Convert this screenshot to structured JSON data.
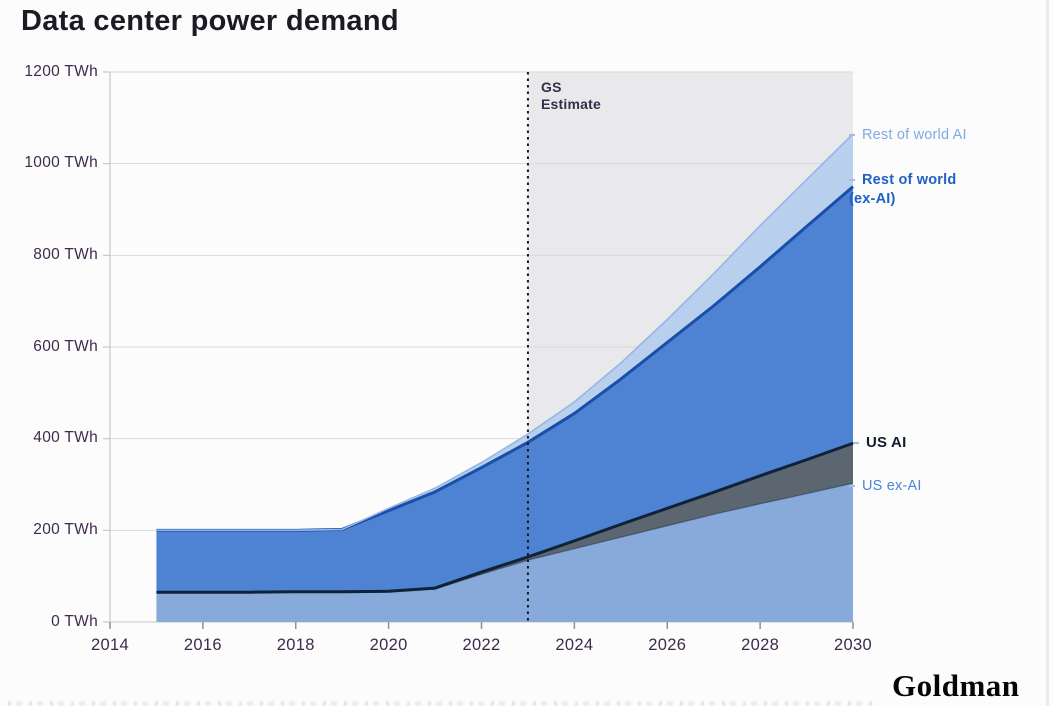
{
  "title": "Data center power demand",
  "estimate": {
    "line1": "GS",
    "line2": "Estimate"
  },
  "branding": {
    "text": "Goldman"
  },
  "colors": {
    "page_bg": "#fcfcfd",
    "title_text": "#1b1b26",
    "axis_label": "#3e2a4d",
    "estimate_bg": "#e9e9ec",
    "estimate_label": "#30304a",
    "gridline": "#d9d9de",
    "axis_line": "#c7c7cd",
    "tick": "#8f8f9a",
    "dotted_line": "#17171f",
    "dash": "#a9bdd6",
    "goldman": "#050505"
  },
  "legend": [
    {
      "label": "Rest of world AI",
      "color": "#7fabe2",
      "bold": false
    },
    {
      "label": "Rest of world (ex-AI)",
      "color": "#2160c4",
      "bold": true
    },
    {
      "label": "US AI",
      "color": "#131b2c",
      "bold": true
    },
    {
      "label": "US ex-AI",
      "color": "#4c86d8",
      "bold": false
    }
  ],
  "chart_data": {
    "type": "area",
    "stacked": true,
    "title": "Data center power demand",
    "unit": "TWh",
    "x": [
      2015,
      2016,
      2017,
      2018,
      2019,
      2020,
      2021,
      2022,
      2023,
      2024,
      2025,
      2026,
      2027,
      2028,
      2029,
      2030
    ],
    "series": [
      {
        "name": "US ex-AI",
        "color": "#87aadb",
        "values": [
          65,
          65,
          65,
          66,
          66,
          67,
          72,
          104,
          135,
          160,
          185,
          210,
          235,
          258,
          280,
          303
        ]
      },
      {
        "name": "US AI",
        "color": "#5c6670",
        "line_color": "#0f2238",
        "values": [
          0,
          0,
          0,
          0,
          0,
          0,
          2,
          5,
          7,
          17,
          28,
          38,
          48,
          61,
          74,
          87
        ]
      },
      {
        "name": "Rest of world (ex-AI)",
        "color": "#4e82d2",
        "line_color": "#1a4fa8",
        "values": [
          135,
          135,
          135,
          134,
          136,
          176,
          210,
          228,
          250,
          278,
          317,
          362,
          407,
          456,
          509,
          560
        ]
      },
      {
        "name": "Rest of world AI",
        "color": "#b8cfee",
        "line_color": "#96b7e4",
        "values": [
          0,
          0,
          0,
          0,
          0,
          5,
          8,
          11,
          18,
          25,
          35,
          50,
          70,
          90,
          102,
          115
        ]
      }
    ],
    "xlim": [
      2014,
      2030
    ],
    "ylim": [
      0,
      1200
    ],
    "grid": true,
    "legend_position": "right",
    "estimate_region": {
      "start_x": 2023,
      "label": "GS Estimate"
    },
    "y_ticks": [
      {
        "value": 0,
        "label": "0 TWh"
      },
      {
        "value": 200,
        "label": "200 TWh"
      },
      {
        "value": 400,
        "label": "400 TWh"
      },
      {
        "value": 600,
        "label": "600 TWh"
      },
      {
        "value": 800,
        "label": "800 TWh"
      },
      {
        "value": 1000,
        "label": "1000 TWh"
      },
      {
        "value": 1200,
        "label": "1200 TWh"
      }
    ],
    "x_ticks": [
      {
        "value": 2014,
        "label": "2014"
      },
      {
        "value": 2016,
        "label": "2016"
      },
      {
        "value": 2018,
        "label": "2018"
      },
      {
        "value": 2020,
        "label": "2020"
      },
      {
        "value": 2022,
        "label": "2022"
      },
      {
        "value": 2024,
        "label": "2024"
      },
      {
        "value": 2026,
        "label": "2026"
      },
      {
        "value": 2028,
        "label": "2028"
      },
      {
        "value": 2030,
        "label": "2030"
      }
    ]
  }
}
